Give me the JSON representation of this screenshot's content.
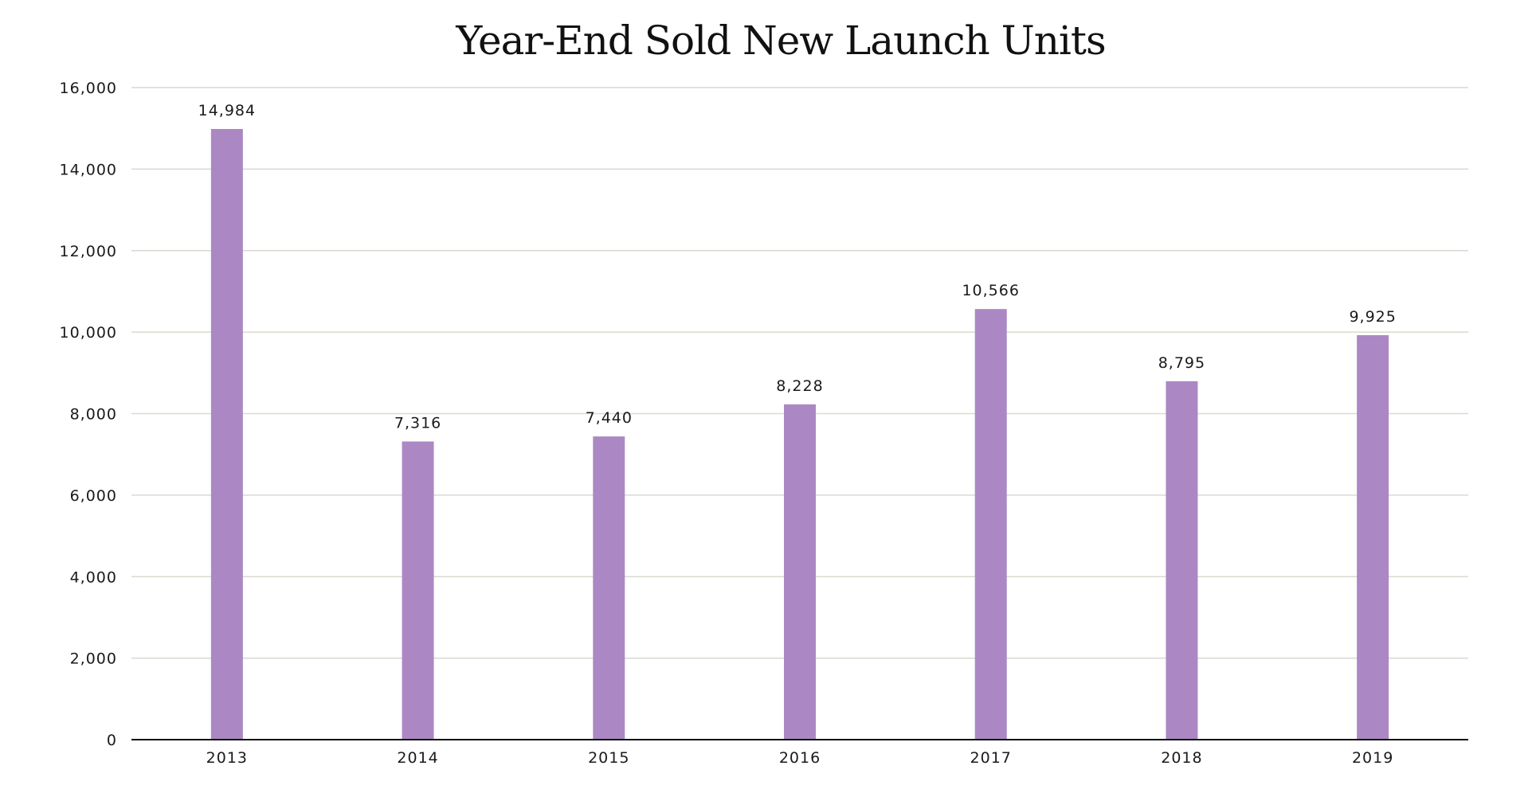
{
  "chart_data": {
    "type": "bar",
    "title": "Year-End Sold New Launch Units",
    "xlabel": "",
    "ylabel": "",
    "categories": [
      "2013",
      "2014",
      "2015",
      "2016",
      "2017",
      "2018",
      "2019"
    ],
    "values": [
      14984,
      7316,
      7440,
      8228,
      10566,
      8795,
      9925
    ],
    "data_labels": [
      "14,984",
      "7,316",
      "7,440",
      "8,228",
      "10,566",
      "8,795",
      "9,925"
    ],
    "ylim": [
      0,
      16000
    ],
    "yticks": [
      0,
      2000,
      4000,
      6000,
      8000,
      10000,
      12000,
      14000,
      16000
    ],
    "ytick_labels": [
      "0",
      "2,000",
      "4,000",
      "6,000",
      "8,000",
      "10,000",
      "12,000",
      "14,000",
      "16,000"
    ],
    "grid": true,
    "legend": "none",
    "colors": {
      "bar": "#ab88c4",
      "grid": "#d9d9d0",
      "axis": "#111111"
    }
  }
}
